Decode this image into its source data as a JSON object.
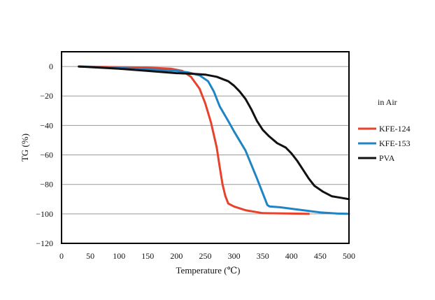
{
  "chart_data": {
    "type": "line",
    "title": "",
    "xlabel": "Temperature (℃)",
    "ylabel": "TG (%)",
    "xlim": [
      0,
      500
    ],
    "ylim": [
      -120,
      10
    ],
    "xticks": [
      0,
      50,
      100,
      150,
      200,
      250,
      300,
      350,
      400,
      450,
      500
    ],
    "yticks": [
      0,
      -20,
      -40,
      -60,
      -80,
      -100,
      -120
    ],
    "grid": "horizontal",
    "legend_title": "in Air",
    "legend_position": "right-outside",
    "series": [
      {
        "name": "KFE-124",
        "color": "#e8412c",
        "x": [
          30,
          100,
          150,
          190,
          210,
          225,
          240,
          250,
          260,
          270,
          275,
          280,
          285,
          290,
          300,
          320,
          350,
          400,
          430
        ],
        "y": [
          0,
          -0.5,
          -0.8,
          -1.5,
          -3,
          -7,
          -15,
          -25,
          -38,
          -55,
          -68,
          -80,
          -88,
          -93,
          -95,
          -97.5,
          -99.5,
          -99.8,
          -100
        ]
      },
      {
        "name": "KFE-153",
        "color": "#1f84c3",
        "x": [
          30,
          100,
          150,
          200,
          220,
          240,
          255,
          265,
          275,
          290,
          300,
          320,
          340,
          358,
          362,
          380,
          420,
          450,
          480,
          500
        ],
        "y": [
          0,
          -1,
          -2,
          -3,
          -4,
          -6,
          -10,
          -17,
          -27,
          -37,
          -44,
          -57,
          -76,
          -94,
          -95,
          -95.5,
          -97.5,
          -99,
          -99.8,
          -100
        ]
      },
      {
        "name": "PVA",
        "color": "#111111",
        "x": [
          30,
          100,
          150,
          200,
          230,
          250,
          270,
          290,
          300,
          310,
          320,
          330,
          340,
          350,
          360,
          375,
          390,
          400,
          410,
          420,
          430,
          440,
          455,
          470,
          485,
          500
        ],
        "y": [
          0,
          -1.5,
          -3,
          -4.5,
          -5,
          -5.5,
          -7,
          -10,
          -13,
          -17,
          -22,
          -29,
          -37,
          -43,
          -47,
          -52,
          -55,
          -59,
          -64,
          -70,
          -76,
          -81,
          -85,
          -88,
          -89,
          -90
        ]
      }
    ]
  }
}
